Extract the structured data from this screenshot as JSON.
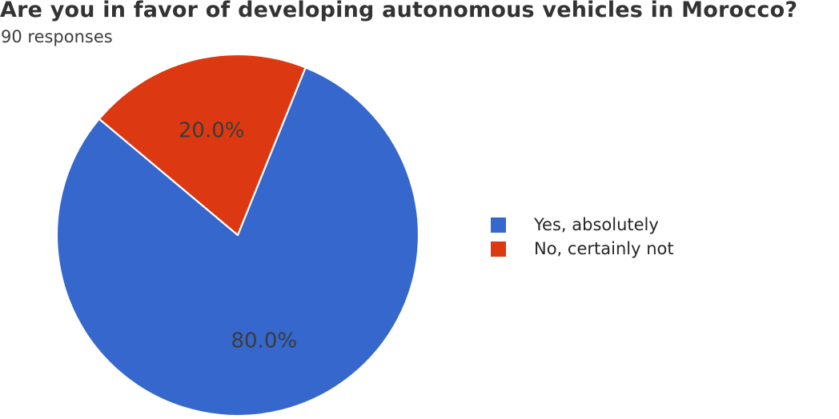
{
  "header": {
    "title": "Are you in favor of developing autonomous vehicles in Morocco?",
    "subtitle": "90 responses"
  },
  "chart_data": {
    "type": "pie",
    "title": "Are you in favor of developing autonomous vehicles in Morocco?",
    "subtitle": "90 responses",
    "total_responses": 90,
    "labels": [
      "Yes, absolutely",
      "No, certainly not"
    ],
    "percentages": [
      80.0,
      20.0
    ],
    "pct_labels": [
      "80.0%",
      "20.0%"
    ],
    "colors": [
      "#3567cd",
      "#dc3912"
    ],
    "pct_label_color": "#3b3b3b",
    "layout": {
      "start_angle_deg": 140,
      "direction": "counterclockwise",
      "pct_distance": 0.6,
      "radius_px": 226,
      "legend_position": "right",
      "slice_edge_color": "#ffffff",
      "background": "#ffffff"
    }
  }
}
